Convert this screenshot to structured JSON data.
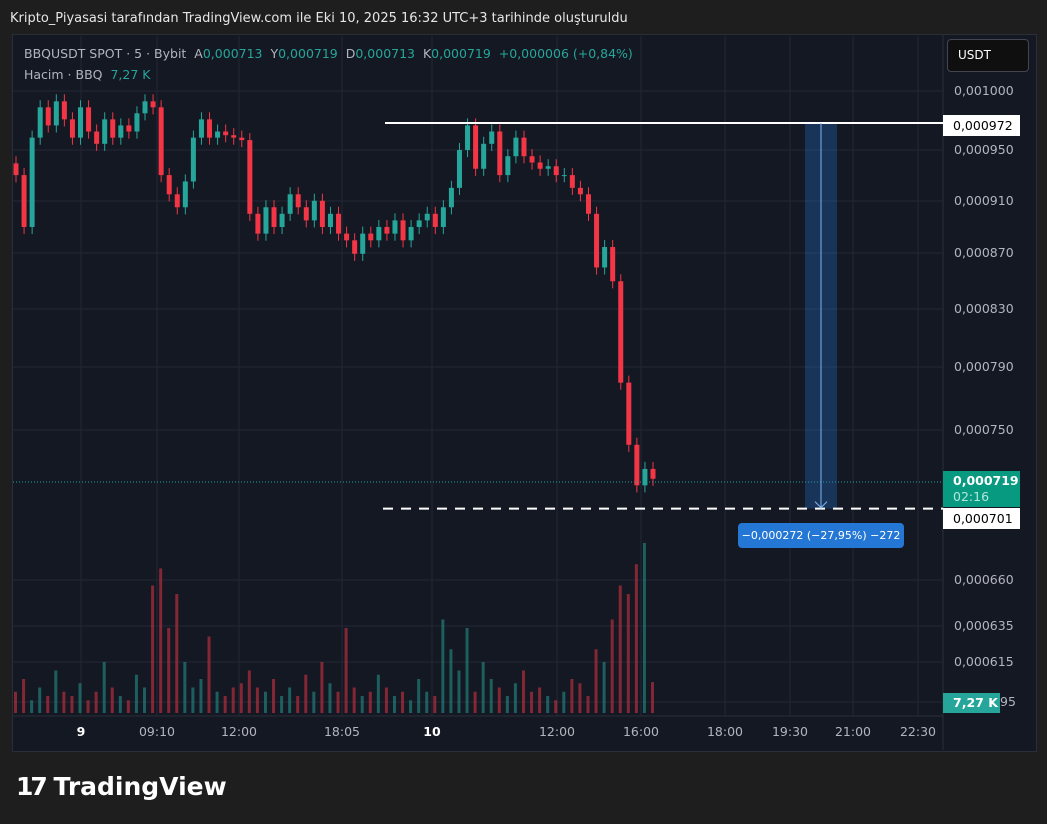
{
  "caption": "Kripto_Piyasasi tarafından TradingView.com ile Eki 10, 2025 16:32 UTC+3 tarihinde oluşturuldu",
  "legend": {
    "symbol": "BBQUSDT SPOT · 5 · Bybit",
    "open_label": "A",
    "open": "0,000713",
    "high_label": "Y",
    "high": "0,000719",
    "low_label": "D",
    "low": "0,000713",
    "close_label": "K",
    "close": "0,000719",
    "change": "+0,000006 (+0,84%)",
    "volume_label": "Hacim · BBQ",
    "volume": "7,27 K"
  },
  "currency_button": "USDT",
  "price_axis": {
    "labels": [
      "0,001000",
      "0,000950",
      "0,000910",
      "0,000870",
      "0,000830",
      "0,000790",
      "0,000750",
      "0,000660",
      "0,000635",
      "0,000615",
      "95"
    ],
    "last_price": "0,000719",
    "countdown": "02:16",
    "measure_top": "0,000972",
    "measure_bottom": "0,000701",
    "volume_badge": "7,27 K"
  },
  "time_axis": [
    "9",
    "09:10",
    "12:00",
    "18:05",
    "10",
    "12:00",
    "16:00",
    "18:00",
    "19:30",
    "21:00",
    "22:30"
  ],
  "measure_label": "−0,000272 (−27,95%) −272",
  "footer_logo": "TradingView",
  "colors": {
    "up": "#26a69a",
    "down": "#f23645",
    "measure": "#2477d4",
    "background": "#141823"
  },
  "chart_data": {
    "type": "candlestick",
    "scale": "log",
    "interval": "5",
    "price_range": [
      0.000695,
      0.00101
    ],
    "closes": [
      0.00093,
      0.00089,
      0.00096,
      0.000985,
      0.00097,
      0.00099,
      0.000975,
      0.00096,
      0.000985,
      0.000965,
      0.000955,
      0.000975,
      0.00096,
      0.00097,
      0.000965,
      0.00098,
      0.00099,
      0.000985,
      0.00093,
      0.000915,
      0.000905,
      0.000925,
      0.00096,
      0.000975,
      0.00096,
      0.000965,
      0.000962,
      0.00096,
      0.000958,
      0.0009,
      0.000885,
      0.000905,
      0.00089,
      0.0009,
      0.000915,
      0.000905,
      0.000895,
      0.00091,
      0.00089,
      0.0009,
      0.000885,
      0.00088,
      0.00087,
      0.000885,
      0.00088,
      0.00089,
      0.000885,
      0.000895,
      0.00088,
      0.00089,
      0.000895,
      0.0009,
      0.00089,
      0.000905,
      0.00092,
      0.00095,
      0.00097,
      0.000935,
      0.000955,
      0.000965,
      0.00093,
      0.000945,
      0.00096,
      0.000945,
      0.00094,
      0.000935,
      0.000937,
      0.00093,
      0.00093,
      0.00092,
      0.000915,
      0.0009,
      0.00086,
      0.000875,
      0.00085,
      0.00078,
      0.00074,
      0.000715,
      0.000725,
      0.000719
    ],
    "volumes_k": [
      5,
      8,
      3,
      6,
      4,
      10,
      5,
      4,
      7,
      3,
      5,
      12,
      6,
      4,
      3,
      9,
      6,
      30,
      34,
      20,
      28,
      12,
      6,
      8,
      18,
      5,
      4,
      6,
      7,
      10,
      6,
      5,
      8,
      4,
      6,
      4,
      9,
      5,
      12,
      7,
      5,
      20,
      6,
      4,
      5,
      9,
      6,
      4,
      5,
      3,
      8,
      5,
      4,
      22,
      15,
      10,
      20,
      5,
      12,
      8,
      6,
      4,
      7,
      10,
      5,
      6,
      4,
      3,
      5,
      8,
      7,
      4,
      15,
      12,
      22,
      30,
      28,
      35,
      40,
      7.27
    ],
    "measure": {
      "from": 0.000972,
      "to": 0.000701,
      "change": "−0,000272",
      "percent": "−27,95%"
    }
  }
}
